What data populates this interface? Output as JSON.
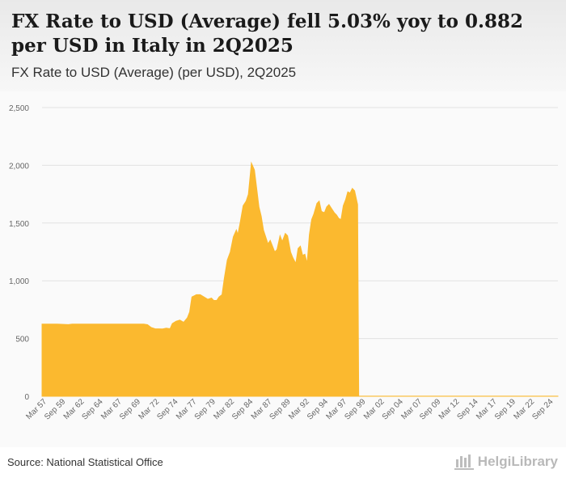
{
  "header": {
    "title": "FX Rate to USD (Average) fell 5.03% yoy to 0.882 per USD in Italy in 2Q2025",
    "subtitle": "FX Rate to USD (Average) (per USD), 2Q2025"
  },
  "footer": {
    "source": "Source: National Statistical Office",
    "brand": "HelgiLibrary"
  },
  "colors": {
    "area": "#fbb92f",
    "grid": "#e2e2e2",
    "axis_text": "#666666"
  },
  "chart_data": {
    "type": "area",
    "title": "FX Rate to USD (Average) (per USD), 2Q2025",
    "xlabel": "",
    "ylabel": "",
    "ylim": [
      0,
      2500
    ],
    "yticks": [
      0,
      500,
      1000,
      1500,
      2000,
      2500
    ],
    "ytick_labels": [
      "0",
      "500",
      "1,000",
      "1,500",
      "2,000",
      "2,500"
    ],
    "x_tick_labels": [
      "Mar 57",
      "Sep 59",
      "Mar 62",
      "Sep 64",
      "Mar 67",
      "Sep 69",
      "Mar 72",
      "Sep 74",
      "Mar 77",
      "Sep 79",
      "Mar 82",
      "Sep 84",
      "Mar 87",
      "Sep 89",
      "Mar 92",
      "Sep 94",
      "Mar 97",
      "Sep 99",
      "Mar 02",
      "Sep 04",
      "Mar 07",
      "Sep 09",
      "Mar 12",
      "Sep 14",
      "Mar 17",
      "Sep 19",
      "Mar 22",
      "Sep 24"
    ],
    "x_range": [
      1957.0,
      2025.5
    ],
    "grid": true,
    "series": [
      {
        "name": "FX Rate to USD (Average)",
        "points": [
          [
            1957.0,
            625
          ],
          [
            1959.0,
            625
          ],
          [
            1960.5,
            621
          ],
          [
            1961.0,
            625
          ],
          [
            1962.0,
            625
          ],
          [
            1964.0,
            625
          ],
          [
            1967.0,
            625
          ],
          [
            1969.5,
            625
          ],
          [
            1970.5,
            625
          ],
          [
            1971.0,
            620
          ],
          [
            1971.5,
            595
          ],
          [
            1972.0,
            585
          ],
          [
            1973.0,
            583
          ],
          [
            1973.5,
            590
          ],
          [
            1974.0,
            585
          ],
          [
            1974.3,
            630
          ],
          [
            1974.8,
            650
          ],
          [
            1975.3,
            660
          ],
          [
            1975.8,
            640
          ],
          [
            1976.3,
            680
          ],
          [
            1976.6,
            730
          ],
          [
            1976.9,
            860
          ],
          [
            1977.2,
            870
          ],
          [
            1977.5,
            880
          ],
          [
            1978.0,
            880
          ],
          [
            1978.5,
            860
          ],
          [
            1979.0,
            840
          ],
          [
            1979.5,
            850
          ],
          [
            1979.8,
            830
          ],
          [
            1980.2,
            830
          ],
          [
            1980.5,
            860
          ],
          [
            1980.9,
            880
          ],
          [
            1981.2,
            1020
          ],
          [
            1981.6,
            1180
          ],
          [
            1982.0,
            1250
          ],
          [
            1982.4,
            1380
          ],
          [
            1982.8,
            1440
          ],
          [
            1983.0,
            1400
          ],
          [
            1983.3,
            1500
          ],
          [
            1983.7,
            1650
          ],
          [
            1984.1,
            1690
          ],
          [
            1984.4,
            1750
          ],
          [
            1984.8,
            2020
          ],
          [
            1985.2,
            1960
          ],
          [
            1985.5,
            1800
          ],
          [
            1985.8,
            1640
          ],
          [
            1986.1,
            1560
          ],
          [
            1986.4,
            1440
          ],
          [
            1986.7,
            1380
          ],
          [
            1987.0,
            1320
          ],
          [
            1987.3,
            1350
          ],
          [
            1987.6,
            1300
          ],
          [
            1987.9,
            1250
          ],
          [
            1988.2,
            1270
          ],
          [
            1988.6,
            1390
          ],
          [
            1988.9,
            1340
          ],
          [
            1989.3,
            1410
          ],
          [
            1989.6,
            1390
          ],
          [
            1990.0,
            1250
          ],
          [
            1990.3,
            1200
          ],
          [
            1990.7,
            1150
          ],
          [
            1991.0,
            1280
          ],
          [
            1991.3,
            1300
          ],
          [
            1991.6,
            1220
          ],
          [
            1991.9,
            1230
          ],
          [
            1992.2,
            1150
          ],
          [
            1992.5,
            1400
          ],
          [
            1992.8,
            1530
          ],
          [
            1993.1,
            1580
          ],
          [
            1993.5,
            1670
          ],
          [
            1993.8,
            1690
          ],
          [
            1994.1,
            1600
          ],
          [
            1994.5,
            1590
          ],
          [
            1994.8,
            1640
          ],
          [
            1995.1,
            1660
          ],
          [
            1995.5,
            1620
          ],
          [
            1995.8,
            1590
          ],
          [
            1996.1,
            1570
          ],
          [
            1996.4,
            1540
          ],
          [
            1996.7,
            1530
          ],
          [
            1997.0,
            1650
          ],
          [
            1997.3,
            1700
          ],
          [
            1997.6,
            1770
          ],
          [
            1997.9,
            1760
          ],
          [
            1998.2,
            1800
          ],
          [
            1998.5,
            1780
          ],
          [
            1998.9,
            1660
          ],
          [
            1999.05,
            0.93
          ],
          [
            2000.0,
            1.08
          ],
          [
            2002.0,
            1.06
          ],
          [
            2004.0,
            0.8
          ],
          [
            2008.0,
            0.68
          ],
          [
            2012.0,
            0.78
          ],
          [
            2015.0,
            0.9
          ],
          [
            2020.0,
            0.88
          ],
          [
            2022.0,
            0.95
          ],
          [
            2024.0,
            0.92
          ],
          [
            2025.5,
            0.882
          ]
        ]
      }
    ]
  }
}
